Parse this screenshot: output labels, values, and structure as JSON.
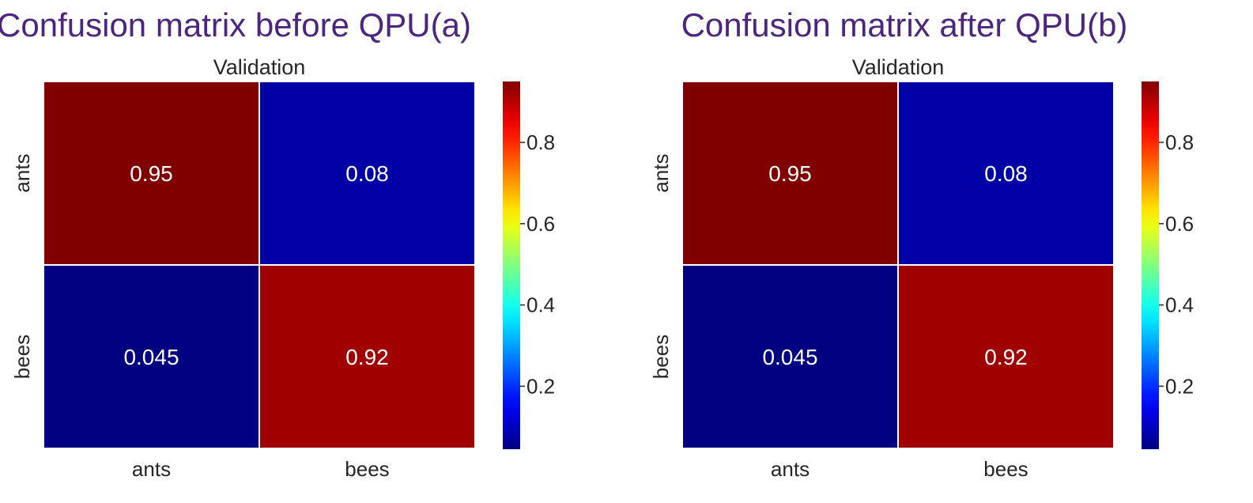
{
  "chart_data": [
    {
      "type": "heatmap",
      "title": "Confusion matrix before QPU(a)",
      "subtitle": "Validation",
      "x_categories": [
        "ants",
        "bees"
      ],
      "y_categories": [
        "ants",
        "bees"
      ],
      "values": [
        [
          0.95,
          0.08
        ],
        [
          0.045,
          0.92
        ]
      ],
      "value_labels": [
        [
          "0.95",
          "0.08"
        ],
        [
          "0.045",
          "0.92"
        ]
      ],
      "colorscale": "jet",
      "colorbar": {
        "range": [
          0.045,
          0.95
        ],
        "ticks": [
          0.2,
          0.4,
          0.6,
          0.8
        ],
        "tick_labels": [
          "0.2",
          "0.4",
          "0.6",
          "0.8"
        ]
      }
    },
    {
      "type": "heatmap",
      "title": "Confusion matrix after QPU(b)",
      "subtitle": "Validation",
      "x_categories": [
        "ants",
        "bees"
      ],
      "y_categories": [
        "ants",
        "bees"
      ],
      "values": [
        [
          0.95,
          0.08
        ],
        [
          0.045,
          0.92
        ]
      ],
      "value_labels": [
        [
          "0.95",
          "0.08"
        ],
        [
          "0.045",
          "0.92"
        ]
      ],
      "colorscale": "jet",
      "colorbar": {
        "range": [
          0.045,
          0.95
        ],
        "ticks": [
          0.2,
          0.4,
          0.6,
          0.8
        ],
        "tick_labels": [
          "0.2",
          "0.4",
          "0.6",
          "0.8"
        ]
      }
    }
  ],
  "colors": {
    "title": "#4b2580",
    "text": "#262626",
    "cell_text": "#ffffff",
    "grid": "#ffffff"
  }
}
